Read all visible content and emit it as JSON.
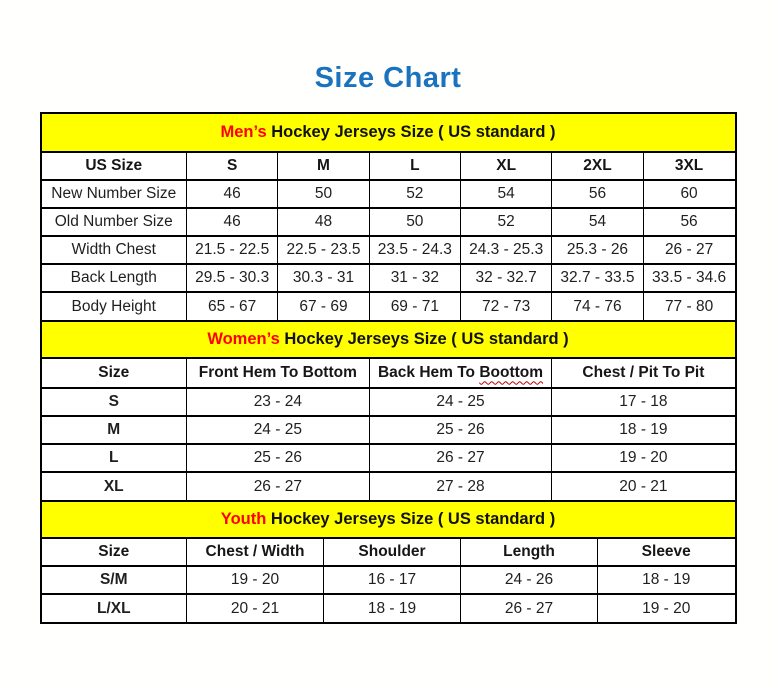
{
  "page": {
    "title": "Size Chart"
  },
  "colors": {
    "title_blue": "#1b73be",
    "band_yellow": "#ffff00",
    "accent_red": "#ff0000",
    "border_black": "#000000",
    "text": "#1f1f1f"
  },
  "tables": [
    {
      "id": "mens",
      "band": {
        "highlight": "Men’s",
        "rest": " Hockey Jerseys Size ( US standard )"
      },
      "columns": [
        "US Size",
        "S",
        "M",
        "L",
        "XL",
        "2XL",
        "3XL"
      ],
      "rows": [
        {
          "label": "New Number Size",
          "values": [
            "46",
            "50",
            "52",
            "54",
            "56",
            "60"
          ]
        },
        {
          "label": "Old Number Size",
          "values": [
            "46",
            "48",
            "50",
            "52",
            "54",
            "56"
          ]
        },
        {
          "label": "Width Chest",
          "values": [
            "21.5 - 22.5",
            "22.5 - 23.5",
            "23.5 - 24.3",
            "24.3 - 25.3",
            "25.3 - 26",
            "26 - 27"
          ]
        },
        {
          "label": "Back Length",
          "values": [
            "29.5 - 30.3",
            "30.3 - 31",
            "31 - 32",
            "32 - 32.7",
            "32.7 - 33.5",
            "33.5 - 34.6"
          ]
        },
        {
          "label": "Body Height",
          "values": [
            "65 - 67",
            "67 - 69",
            "69 - 71",
            "72 - 73",
            "74 - 76",
            "77 - 80"
          ]
        }
      ]
    },
    {
      "id": "womens",
      "band": {
        "highlight": "Women’s",
        "rest": " Hockey Jerseys Size ( US standard )"
      },
      "columns": [
        "Size",
        "Front Hem To Bottom",
        "Back Hem To Boottom",
        "Chest / Pit To Pit"
      ],
      "spell": {
        "prefix": "Back Hem To ",
        "word": "Boottom"
      },
      "rows": [
        {
          "label": "S",
          "values": [
            "23 - 24",
            "24 - 25",
            "17 - 18"
          ]
        },
        {
          "label": "M",
          "values": [
            "24 - 25",
            "25 - 26",
            "18 - 19"
          ]
        },
        {
          "label": "L",
          "values": [
            "25 - 26",
            "26 - 27",
            "19 - 20"
          ]
        },
        {
          "label": "XL",
          "values": [
            "26 - 27",
            "27 - 28",
            "20 - 21"
          ]
        }
      ]
    },
    {
      "id": "youth",
      "band": {
        "highlight": "Youth",
        "rest": " Hockey Jerseys Size ( US standard )"
      },
      "columns": [
        "Size",
        "Chest / Width",
        "Shoulder",
        "Length",
        "Sleeve"
      ],
      "rows": [
        {
          "label": "S/M",
          "values": [
            "19 - 20",
            "16 - 17",
            "24 - 26",
            "18 - 19"
          ]
        },
        {
          "label": "L/XL",
          "values": [
            "20 - 21",
            "18 - 19",
            "26 - 27",
            "19 - 20"
          ]
        }
      ]
    }
  ]
}
